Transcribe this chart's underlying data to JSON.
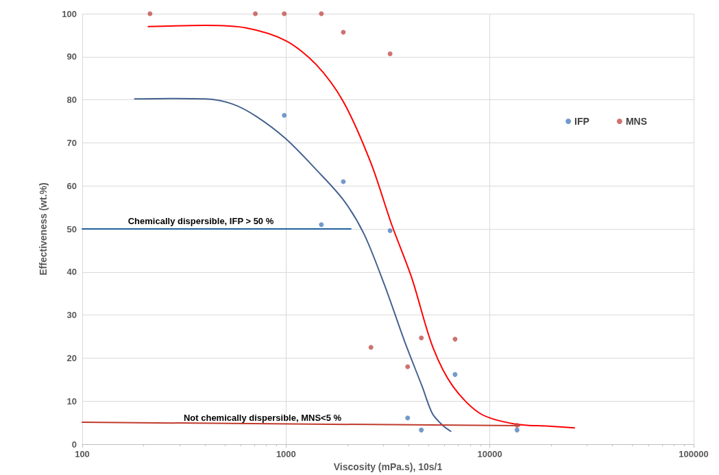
{
  "chart_data": {
    "type": "scatter",
    "xlabel": "Viscosity (mPa.s), 10s/1",
    "ylabel": "Effectiveness (wt.%)",
    "log": "x",
    "xlim": [
      100,
      100000
    ],
    "xticks": [
      100,
      1000,
      10000,
      100000
    ],
    "ylim": [
      0,
      100
    ],
    "yticks": [
      0,
      10,
      20,
      30,
      40,
      50,
      60,
      70,
      80,
      90,
      100
    ],
    "grid": true,
    "legend": "right",
    "series": [
      {
        "name": "IFP",
        "marker": "circle",
        "color": "#4f81bd",
        "x": [
          980,
          1910,
          1490,
          3240,
          3950,
          4610,
          6750,
          13600
        ],
        "values": [
          76.4,
          61,
          51,
          49.6,
          6.1,
          3.3,
          16.2,
          3.3
        ]
      },
      {
        "name": "MNS",
        "marker": "circle",
        "color": "#c0504d",
        "x": [
          215,
          707,
          980,
          1490,
          1910,
          3240,
          2610,
          3950,
          4610,
          6750,
          13600
        ],
        "values": [
          100,
          100,
          100,
          100,
          95.7,
          90.7,
          22.5,
          18,
          24.7,
          24.4,
          4.4
        ]
      },
      {
        "type": "line",
        "marker": "none",
        "color": "#44628f",
        "x": [
          181,
          273,
          402,
          547,
          717,
          1000,
          1405,
          1914,
          2415,
          3041,
          3837,
          4656,
          5227,
          5867,
          6429
        ],
        "values": [
          80.2,
          80.3,
          80.2,
          79,
          76.1,
          70.9,
          63.8,
          56.7,
          48.8,
          37,
          23.6,
          13.4,
          7.1,
          4.4,
          3
        ]
      },
      {
        "type": "line",
        "marker": "none",
        "color": "#ff0000",
        "x": [
          211,
          402,
          638,
          1000,
          1405,
          1914,
          2606,
          3288,
          4140,
          5227,
          6598,
          8985,
          13200,
          19450,
          26000
        ],
        "values": [
          97,
          97.3,
          96.7,
          93.7,
          88.2,
          79.5,
          65.4,
          51.2,
          38.6,
          22.8,
          13.4,
          7.1,
          4.7,
          4.2,
          3.8
        ]
      },
      {
        "type": "line",
        "marker": "none",
        "color": "#1f5f9f",
        "x": [
          100,
          2080
        ],
        "values": [
          50,
          50
        ]
      },
      {
        "type": "line",
        "marker": "none",
        "color": "#c0392b",
        "x": [
          100,
          14000
        ],
        "values": [
          5.1,
          4.3
        ]
      }
    ],
    "annotations": [
      "Chemically dispersible, IFP > 50 %",
      "Not chemically dispersible, MNS<5 %"
    ]
  }
}
